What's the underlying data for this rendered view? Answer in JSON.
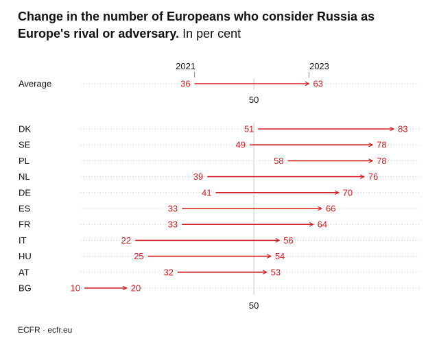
{
  "title": "Change in the number of Europeans who consider Russia as Europe's rival or adversary.",
  "subtitle": "In per cent",
  "source": "ECFR · ecfr.eu",
  "colors": {
    "accent": "#d01c1f",
    "grid": "#c9c9c9",
    "text": "#111111"
  },
  "chart_data": {
    "type": "dumbbell-arrow",
    "xlim": [
      10,
      83
    ],
    "reference_value": 50,
    "reference_label": "50",
    "legend": {
      "start": "2021",
      "end": "2023"
    },
    "average": {
      "label": "Average",
      "start": 36,
      "end": 63
    },
    "series_names": [
      "2021",
      "2023"
    ],
    "rows": [
      {
        "label": "DK",
        "start": 51,
        "end": 83
      },
      {
        "label": "SE",
        "start": 49,
        "end": 78
      },
      {
        "label": "PL",
        "start": 58,
        "end": 78
      },
      {
        "label": "NL",
        "start": 39,
        "end": 76
      },
      {
        "label": "DE",
        "start": 41,
        "end": 70
      },
      {
        "label": "ES",
        "start": 33,
        "end": 66
      },
      {
        "label": "FR",
        "start": 33,
        "end": 64
      },
      {
        "label": "IT",
        "start": 22,
        "end": 56
      },
      {
        "label": "HU",
        "start": 25,
        "end": 54
      },
      {
        "label": "AT",
        "start": 32,
        "end": 53
      },
      {
        "label": "BG",
        "start": 10,
        "end": 20
      }
    ]
  }
}
